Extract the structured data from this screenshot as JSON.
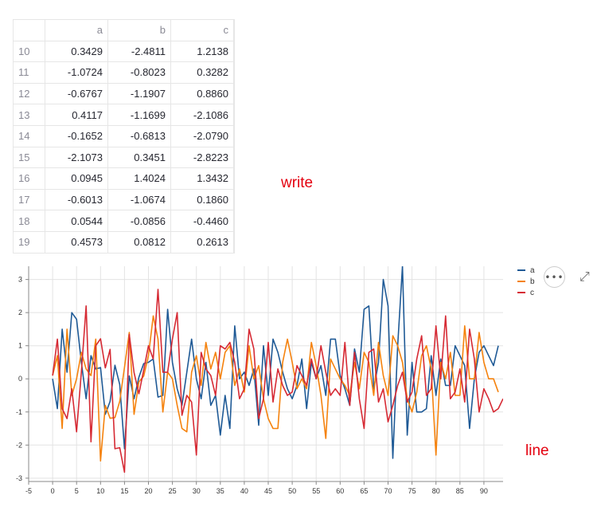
{
  "dataframe": {
    "columns": [
      "a",
      "b",
      "c"
    ],
    "rows": [
      {
        "index": "10",
        "a": "0.3429",
        "b": "-2.4811",
        "c": "1.2138"
      },
      {
        "index": "11",
        "a": "-1.0724",
        "b": "-0.8023",
        "c": "0.3282"
      },
      {
        "index": "12",
        "a": "-0.6767",
        "b": "-1.1907",
        "c": "0.8860"
      },
      {
        "index": "13",
        "a": "0.4117",
        "b": "-1.1699",
        "c": "-2.1086"
      },
      {
        "index": "14",
        "a": "-0.1652",
        "b": "-0.6813",
        "c": "-2.0790"
      },
      {
        "index": "15",
        "a": "-2.1073",
        "b": "0.3451",
        "c": "-2.8223"
      },
      {
        "index": "16",
        "a": "0.0945",
        "b": "1.4024",
        "c": "1.3432"
      },
      {
        "index": "17",
        "a": "-0.6013",
        "b": "-1.0674",
        "c": "0.1860"
      },
      {
        "index": "18",
        "a": "0.0544",
        "b": "-0.0856",
        "c": "-0.4460"
      },
      {
        "index": "19",
        "a": "0.4573",
        "b": "0.0812",
        "c": "0.2613"
      }
    ]
  },
  "annotations": {
    "write": "write",
    "line": "line"
  },
  "toolbar": {
    "menu_label": "•••",
    "fullscreen_label": "⤢"
  },
  "chart_data": {
    "type": "line",
    "xlim": [
      -5,
      94
    ],
    "ylim": [
      -3.1,
      3.4
    ],
    "xticks": [
      -5,
      0,
      5,
      10,
      15,
      20,
      25,
      30,
      35,
      40,
      45,
      50,
      55,
      60,
      65,
      70,
      75,
      80,
      85,
      90
    ],
    "yticks": [
      -3,
      -2,
      -1,
      0,
      1,
      2,
      3
    ],
    "grid": true,
    "legend_position": "top-right",
    "series": [
      {
        "name": "a",
        "color": "#1f5a96",
        "values": [
          0.0,
          -0.9,
          1.5,
          0.2,
          2.0,
          1.8,
          0.5,
          -0.6,
          0.7,
          0.3,
          0.34,
          -1.07,
          -0.68,
          0.41,
          -0.17,
          -2.11,
          0.09,
          -0.6,
          0.05,
          0.46,
          0.5,
          0.6,
          -0.55,
          -0.5,
          2.1,
          0.5,
          -0.3,
          -0.8,
          0.2,
          1.2,
          0.0,
          -0.6,
          0.5,
          -0.8,
          -0.5,
          -1.7,
          -0.5,
          -1.5,
          1.6,
          0.0,
          0.2,
          -0.2,
          0.3,
          -1.4,
          1.0,
          -0.5,
          1.2,
          0.8,
          0.2,
          -0.3,
          -0.6,
          -0.2,
          0.6,
          -0.9,
          0.5,
          0.0,
          0.4,
          -0.5,
          1.2,
          1.2,
          0.1,
          -0.3,
          -0.8,
          0.9,
          0.2,
          2.1,
          2.2,
          -0.3,
          0.5,
          3.0,
          2.2,
          -2.4,
          1.0,
          3.4,
          -1.7,
          0.5,
          -1.0,
          -1.0,
          -0.9,
          0.7,
          -0.5,
          0.6,
          -0.2,
          -0.2,
          1.0,
          0.7,
          0.4,
          -1.5,
          0.0,
          0.8,
          1.0,
          0.7,
          0.4,
          1.0
        ]
      },
      {
        "name": "b",
        "color": "#f5820d",
        "values": [
          0.1,
          0.7,
          -1.5,
          1.5,
          -0.5,
          0.0,
          0.8,
          0.3,
          0.1,
          1.2,
          -2.48,
          -0.8,
          -1.19,
          -1.17,
          -0.68,
          0.35,
          1.4,
          -1.07,
          -0.09,
          0.08,
          0.7,
          1.9,
          1.2,
          -1.0,
          0.2,
          0.0,
          -0.8,
          -1.5,
          -1.6,
          0.2,
          0.7,
          -0.2,
          1.1,
          0.3,
          0.8,
          0.0,
          0.8,
          1.0,
          -0.2,
          0.3,
          -0.4,
          1.0,
          0.0,
          0.4,
          -0.6,
          -1.2,
          -1.5,
          -1.5,
          0.5,
          1.2,
          0.5,
          -0.3,
          0.0,
          -0.3,
          1.1,
          0.4,
          -0.5,
          -1.8,
          0.6,
          0.3,
          0.0,
          -0.2,
          -0.5,
          0.5,
          -0.3,
          0.8,
          0.5,
          -0.5,
          1.1,
          0.1,
          -0.5,
          1.3,
          1.0,
          0.5,
          -0.6,
          -1.0,
          -0.4,
          0.7,
          1.0,
          0.3,
          -2.3,
          0.5,
          0.0,
          0.8,
          -0.5,
          -0.5,
          1.6,
          0.0,
          0.0,
          1.4,
          0.5,
          0.0,
          0.0,
          -0.4
        ]
      },
      {
        "name": "c",
        "color": "#d62a34",
        "values": [
          0.1,
          1.2,
          -0.9,
          -1.2,
          -0.3,
          -1.6,
          0.2,
          2.2,
          -1.9,
          1.0,
          1.21,
          0.33,
          0.89,
          -2.11,
          -2.08,
          -2.82,
          1.34,
          0.19,
          -0.45,
          0.26,
          1.0,
          0.6,
          2.7,
          0.2,
          0.2,
          1.2,
          2.0,
          -1.1,
          -0.5,
          -0.7,
          -2.3,
          0.8,
          0.3,
          0.1,
          -0.5,
          1.0,
          0.9,
          1.1,
          0.5,
          -0.6,
          -0.3,
          1.5,
          0.9,
          -1.2,
          -0.6,
          1.1,
          -0.7,
          0.3,
          -0.2,
          -0.5,
          -0.4,
          0.4,
          0.1,
          -0.2,
          0.6,
          0.0,
          1.0,
          0.2,
          -0.5,
          -0.3,
          -0.5,
          1.1,
          -0.8,
          0.8,
          -0.6,
          -1.5,
          0.8,
          0.9,
          -0.7,
          -0.3,
          -1.3,
          -0.8,
          -0.2,
          0.2,
          -0.7,
          -0.4,
          0.6,
          1.3,
          -0.5,
          -0.3,
          1.6,
          0.0,
          1.9,
          -0.6,
          -0.4,
          0.3,
          -0.7,
          1.5,
          0.6,
          -1.0,
          -0.3,
          -0.6,
          -1.0,
          -0.9,
          -0.6
        ]
      }
    ]
  }
}
